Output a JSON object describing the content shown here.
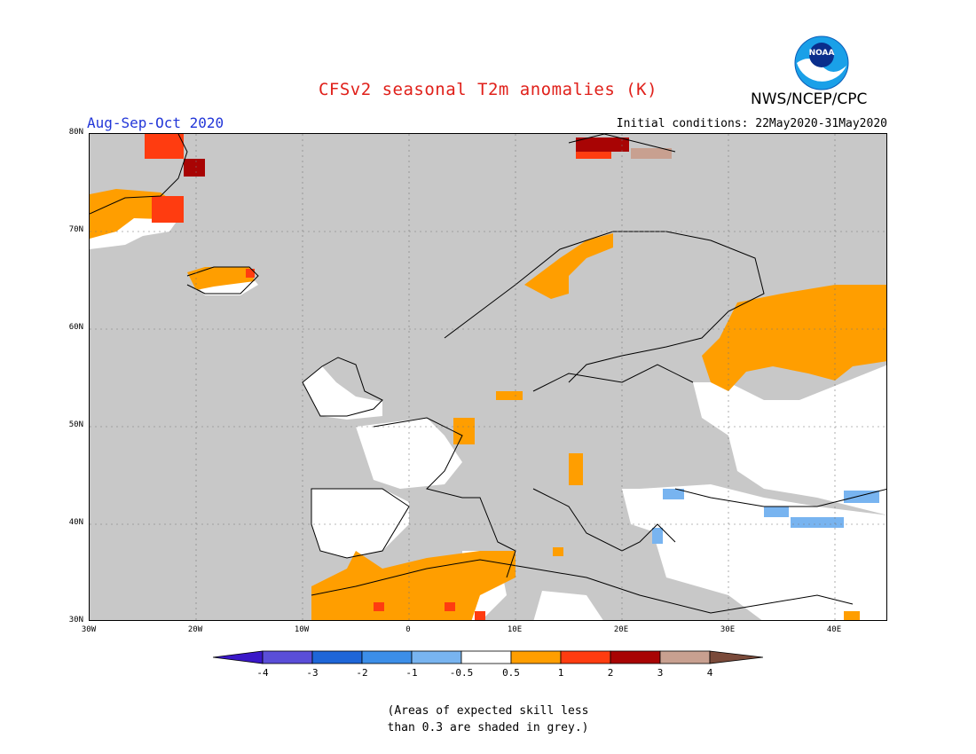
{
  "title": "CFSv2 seasonal T2m anomalies (K)",
  "agency": "NWS/NCEP/CPC",
  "logo_text": "NOAA",
  "season": "Aug-Sep-Oct 2020",
  "initial_conditions": "Initial conditions: 22May2020-31May2020",
  "axes": {
    "lat_labels": [
      "80N",
      "70N",
      "60N",
      "50N",
      "40N",
      "30N"
    ],
    "lon_labels": [
      "30W",
      "20W",
      "10W",
      "0",
      "10E",
      "20E",
      "30E",
      "40E"
    ]
  },
  "colorbar": {
    "tick_labels": [
      "-4",
      "-3",
      "-2",
      "-1",
      "-0.5",
      "0.5",
      "1",
      "2",
      "3",
      "4"
    ],
    "colors": [
      "#3a18c8",
      "#5a4ed8",
      "#1e66d8",
      "#3c8ee8",
      "#78b4f0",
      "#ffffff",
      "#ff9e00",
      "#ff3c10",
      "#a80404",
      "#c8a090",
      "#7a4a3a"
    ]
  },
  "colors": {
    "grey_low_skill": "#c8c8c8",
    "near_normal": "#ffffff",
    "warm_05_1": "#ff9e00",
    "warm_1_2": "#ff3c10",
    "warm_2_3": "#a80404",
    "warm_3_4": "#c8a090",
    "cool_05_1": "#78b4f0"
  },
  "note_line1": "(Areas of expected skill less",
  "note_line2": "than 0.3 are shaded in grey.)"
}
